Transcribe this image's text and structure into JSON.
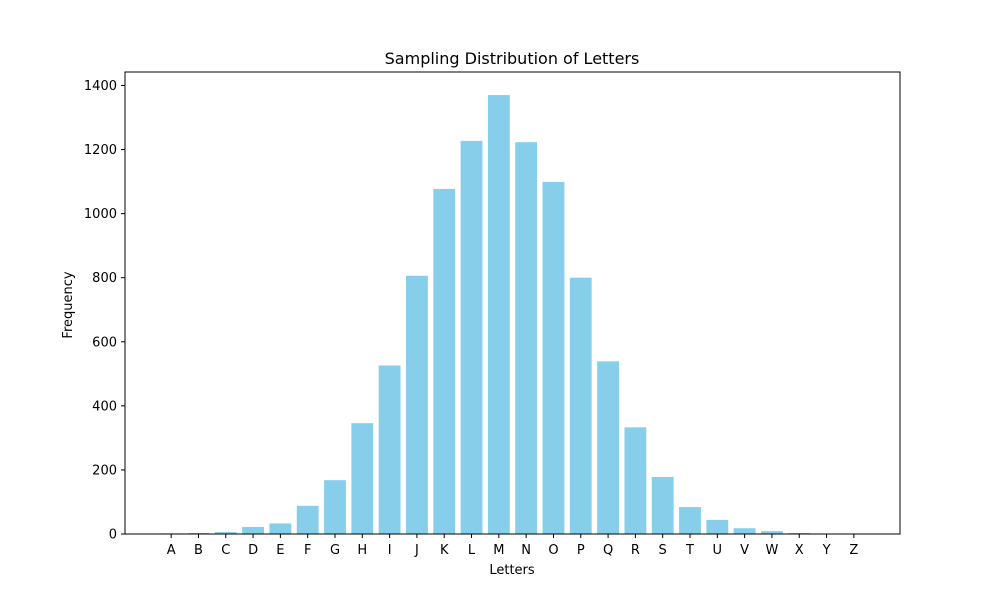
{
  "chart_data": {
    "type": "bar",
    "title": "Sampling Distribution of Letters",
    "xlabel": "Letters",
    "ylabel": "Frequency",
    "categories": [
      "A",
      "B",
      "C",
      "D",
      "E",
      "F",
      "G",
      "H",
      "I",
      "J",
      "K",
      "L",
      "M",
      "N",
      "O",
      "P",
      "Q",
      "R",
      "S",
      "T",
      "U",
      "V",
      "W",
      "X",
      "Y",
      "Z"
    ],
    "values": [
      2,
      3,
      6,
      22,
      33,
      88,
      168,
      346,
      526,
      806,
      1077,
      1227,
      1370,
      1223,
      1099,
      800,
      539,
      333,
      178,
      84,
      44,
      18,
      9,
      3,
      1,
      0
    ],
    "yticks": [
      "0",
      "200",
      "400",
      "600",
      "800",
      "1000",
      "1200",
      "1400"
    ],
    "ylim": [
      0,
      1442
    ],
    "grid": false,
    "colors": {
      "bar": "#87CEEB",
      "axis": "#000000",
      "background": "#ffffff"
    }
  }
}
